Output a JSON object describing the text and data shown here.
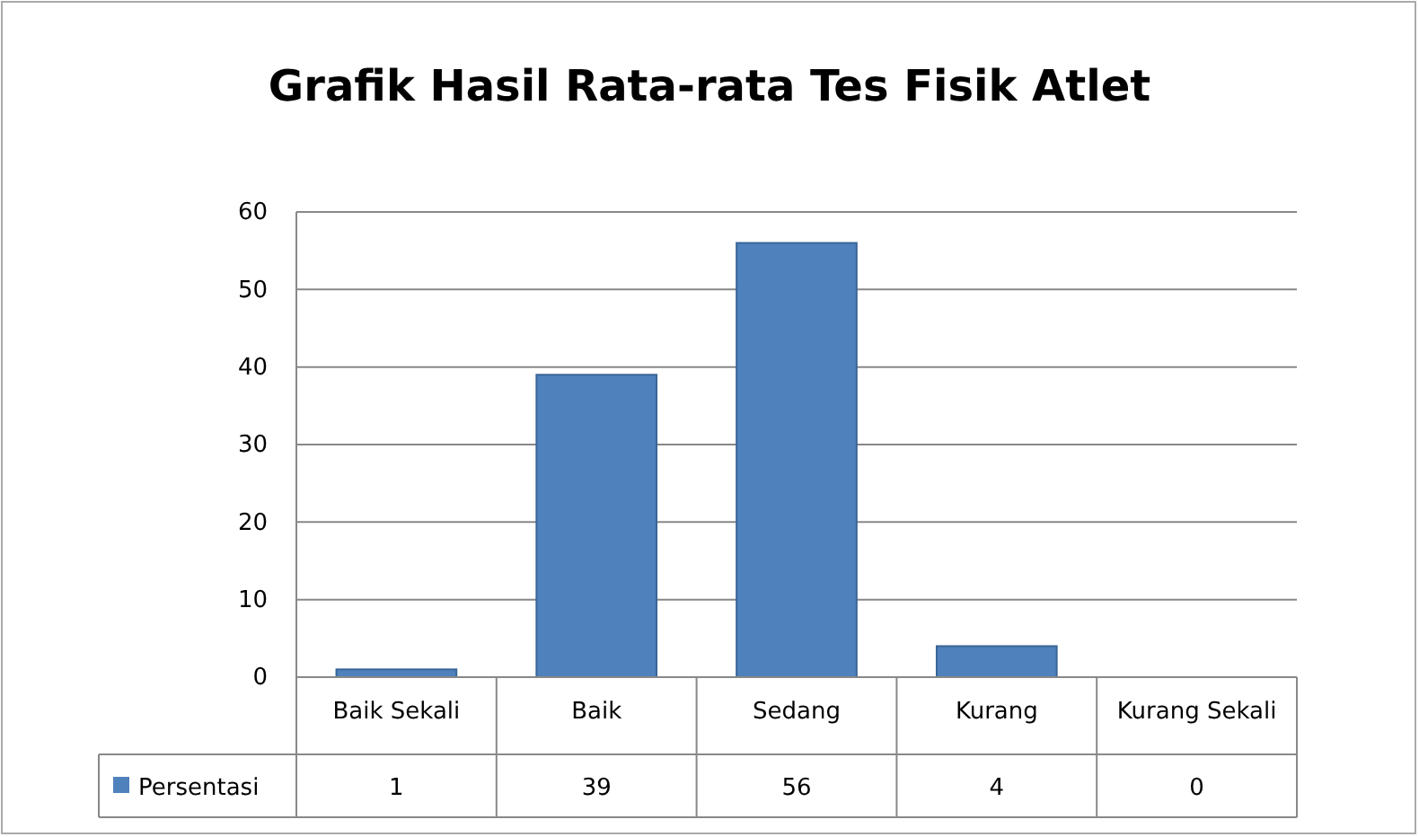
{
  "chart_data": {
    "type": "bar",
    "title": "Grafik Hasil Rata-rata Tes Fisik  Atlet",
    "categories": [
      "Baik Sekali",
      "Baik",
      "Sedang",
      "Kurang",
      "Kurang Sekali"
    ],
    "series": [
      {
        "name": "Persentasi",
        "color": "#4f81bd",
        "values": [
          1,
          39,
          56,
          4,
          0
        ]
      }
    ],
    "ylim": [
      0,
      60
    ],
    "yticks": [
      0,
      10,
      20,
      30,
      40,
      50,
      60
    ],
    "grid": "y",
    "legend": "bottom",
    "data_labels": true
  }
}
